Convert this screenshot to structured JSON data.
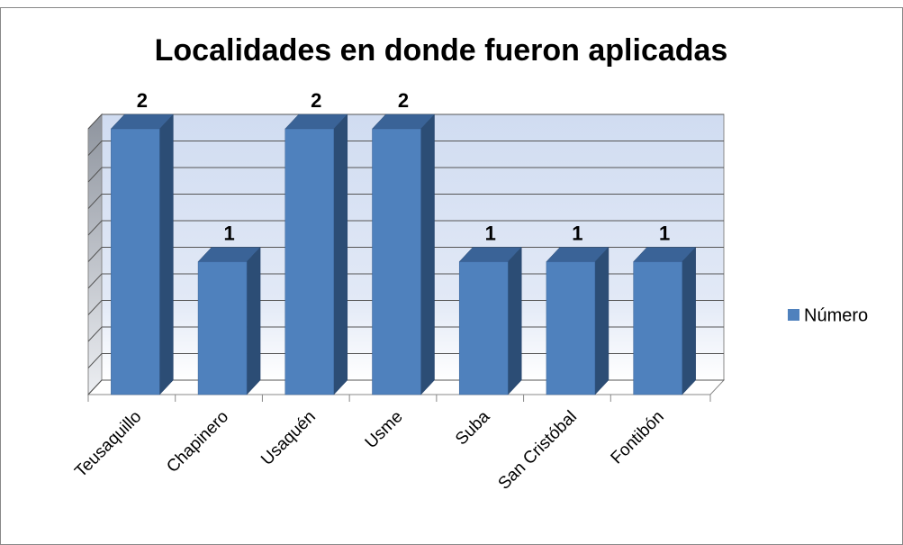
{
  "chart_data": {
    "type": "bar",
    "title": "Localidades en donde fueron aplicadas",
    "categories": [
      "Teusaquillo",
      "Chapinero",
      "Usaquén",
      "Usme",
      "Suba",
      "San Cristóbal",
      "Fontibón"
    ],
    "series": [
      {
        "name": "Número",
        "color": "#4f81bd",
        "values": [
          2,
          1,
          2,
          2,
          1,
          1,
          1
        ]
      }
    ],
    "ylim": [
      0,
      2
    ],
    "yticks": [
      0,
      0.2,
      0.4,
      0.6,
      0.8,
      1,
      1.2,
      1.4,
      1.6,
      1.8,
      2
    ],
    "grid": true,
    "legend": "right"
  }
}
